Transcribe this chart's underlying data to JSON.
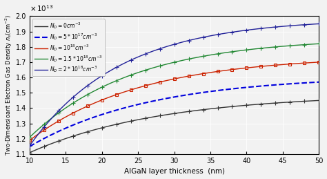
{
  "xlabel": "AlGaN layer thickness  (nm)",
  "ylabel": "Two-Dimensioant Electron Gas Density $n_s$(cm$^{-2}$)",
  "xlim": [
    10,
    50
  ],
  "ylim": [
    11000000000000.0,
    20000000000000.0
  ],
  "yticks": [
    1.1,
    1.2,
    1.3,
    1.4,
    1.5,
    1.6,
    1.7,
    1.8,
    1.9,
    2.0
  ],
  "xticks": [
    10,
    15,
    20,
    25,
    30,
    35,
    40,
    45,
    50
  ],
  "series": [
    {
      "label": "$N_D=0cm^{-3}$",
      "color": "#333333",
      "linestyle": "-",
      "marker": "+",
      "markersize": 4,
      "linewidth": 1.0,
      "y10": 1.11,
      "y50": 1.45,
      "b": 0.055
    },
    {
      "label": "$N_D=5*10^{17}cm^{-3}$",
      "color": "#0000dd",
      "linestyle": "--",
      "marker": null,
      "markersize": 0,
      "linewidth": 1.5,
      "y10": 1.15,
      "y50": 1.57,
      "b": 0.06
    },
    {
      "label": "$N_D=10^{18}cm^{-3}$",
      "color": "#cc2200",
      "linestyle": "-",
      "marker": "s",
      "markersize": 3,
      "linewidth": 1.0,
      "y10": 1.19,
      "y50": 1.7,
      "b": 0.065
    },
    {
      "label": "$N_D=1.5*10^{18}cm^{-3}$",
      "color": "#228833",
      "linestyle": "-",
      "marker": "+",
      "markersize": 4,
      "linewidth": 1.0,
      "y10": 1.21,
      "y50": 1.82,
      "b": 0.07
    },
    {
      "label": "$N_D=2*10^{18}cm^{-3}$",
      "color": "#222299",
      "linestyle": "-",
      "marker": "+",
      "markersize": 4,
      "linewidth": 1.0,
      "y10": 1.155,
      "y50": 1.95,
      "b": 0.08
    }
  ],
  "background_color": "#f2f2f2",
  "marker_every": 2
}
